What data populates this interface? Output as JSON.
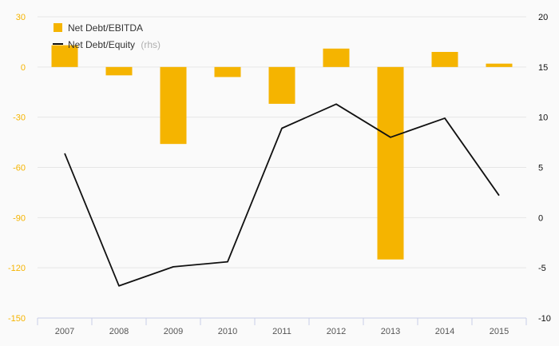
{
  "chart_data": {
    "type": "bar",
    "categories": [
      "2007",
      "2008",
      "2009",
      "2010",
      "2011",
      "2012",
      "2013",
      "2014",
      "2015"
    ],
    "series": [
      {
        "name": "Net Debt/EBITDA",
        "type": "bar",
        "axis": "left",
        "color": "#f5b400",
        "values": [
          13,
          -5,
          -46,
          -6,
          -22,
          11,
          -115,
          9,
          2
        ]
      },
      {
        "name": "Net Debt/Equity",
        "name_note": "(rhs)",
        "type": "line",
        "axis": "right",
        "color": "#111111",
        "values": [
          6.4,
          -6.8,
          -4.9,
          -4.4,
          8.9,
          11.3,
          8.0,
          9.9,
          2.2
        ]
      }
    ],
    "y_left": {
      "ylim": [
        -150,
        30
      ],
      "ticks": [
        30,
        0,
        -30,
        -60,
        -90,
        -120,
        -150
      ]
    },
    "y_right": {
      "ylim": [
        -10,
        20
      ],
      "ticks": [
        20,
        15,
        10,
        5,
        0,
        -5,
        -10
      ]
    },
    "grid": true,
    "legend_position": "top-left"
  }
}
